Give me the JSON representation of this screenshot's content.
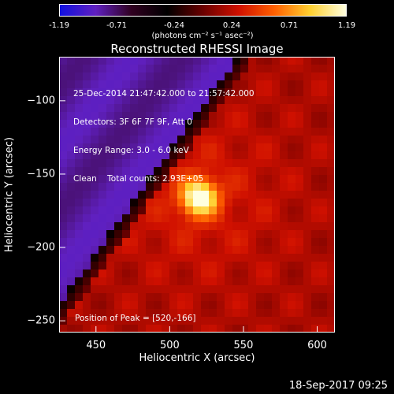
{
  "colorbar": {
    "ticks": [
      "-1.19",
      "-0.71",
      "-0.24",
      "0.24",
      "0.71",
      "1.19"
    ],
    "units": "(photons cm⁻² s⁻¹ asec⁻²)",
    "range": [
      -1.19,
      1.19
    ],
    "colors": [
      "#1010e0",
      "#6020c0",
      "#300020",
      "#000000",
      "#6a0000",
      "#d01000",
      "#ff6000",
      "#ffd030",
      "#ffffe0"
    ]
  },
  "title": "Reconstructed RHESSI Image",
  "info_lines": [
    "25-Dec-2014 21:47:42.000 to 21:57:42.000",
    "Detectors: 3F 6F 7F 9F, Att 0",
    "Energy Range: 3.0 - 6.0 keV",
    "Clean    Total counts: 2.93E+05"
  ],
  "peak_text": "Position of Peak = [520,-166]",
  "timestamp": "18-Sep-2017 09:25",
  "chart_data": {
    "type": "heatmap",
    "title": "Reconstructed RHESSI Image",
    "xlabel": "Heliocentric X (arcsec)",
    "ylabel": "Heliocentric Y (arcsec)",
    "xlim": [
      425,
      612
    ],
    "ylim": [
      -258,
      -70
    ],
    "x_ticks": [
      450,
      500,
      550,
      600
    ],
    "y_ticks": [
      -100,
      -150,
      -200,
      -250
    ],
    "peak": {
      "x": 520,
      "y": -166,
      "value": 1.19
    },
    "colorbar_label": "(photons cm⁻² s⁻¹ asec⁻²)",
    "colorbar_range": [
      -1.19,
      1.19
    ]
  }
}
